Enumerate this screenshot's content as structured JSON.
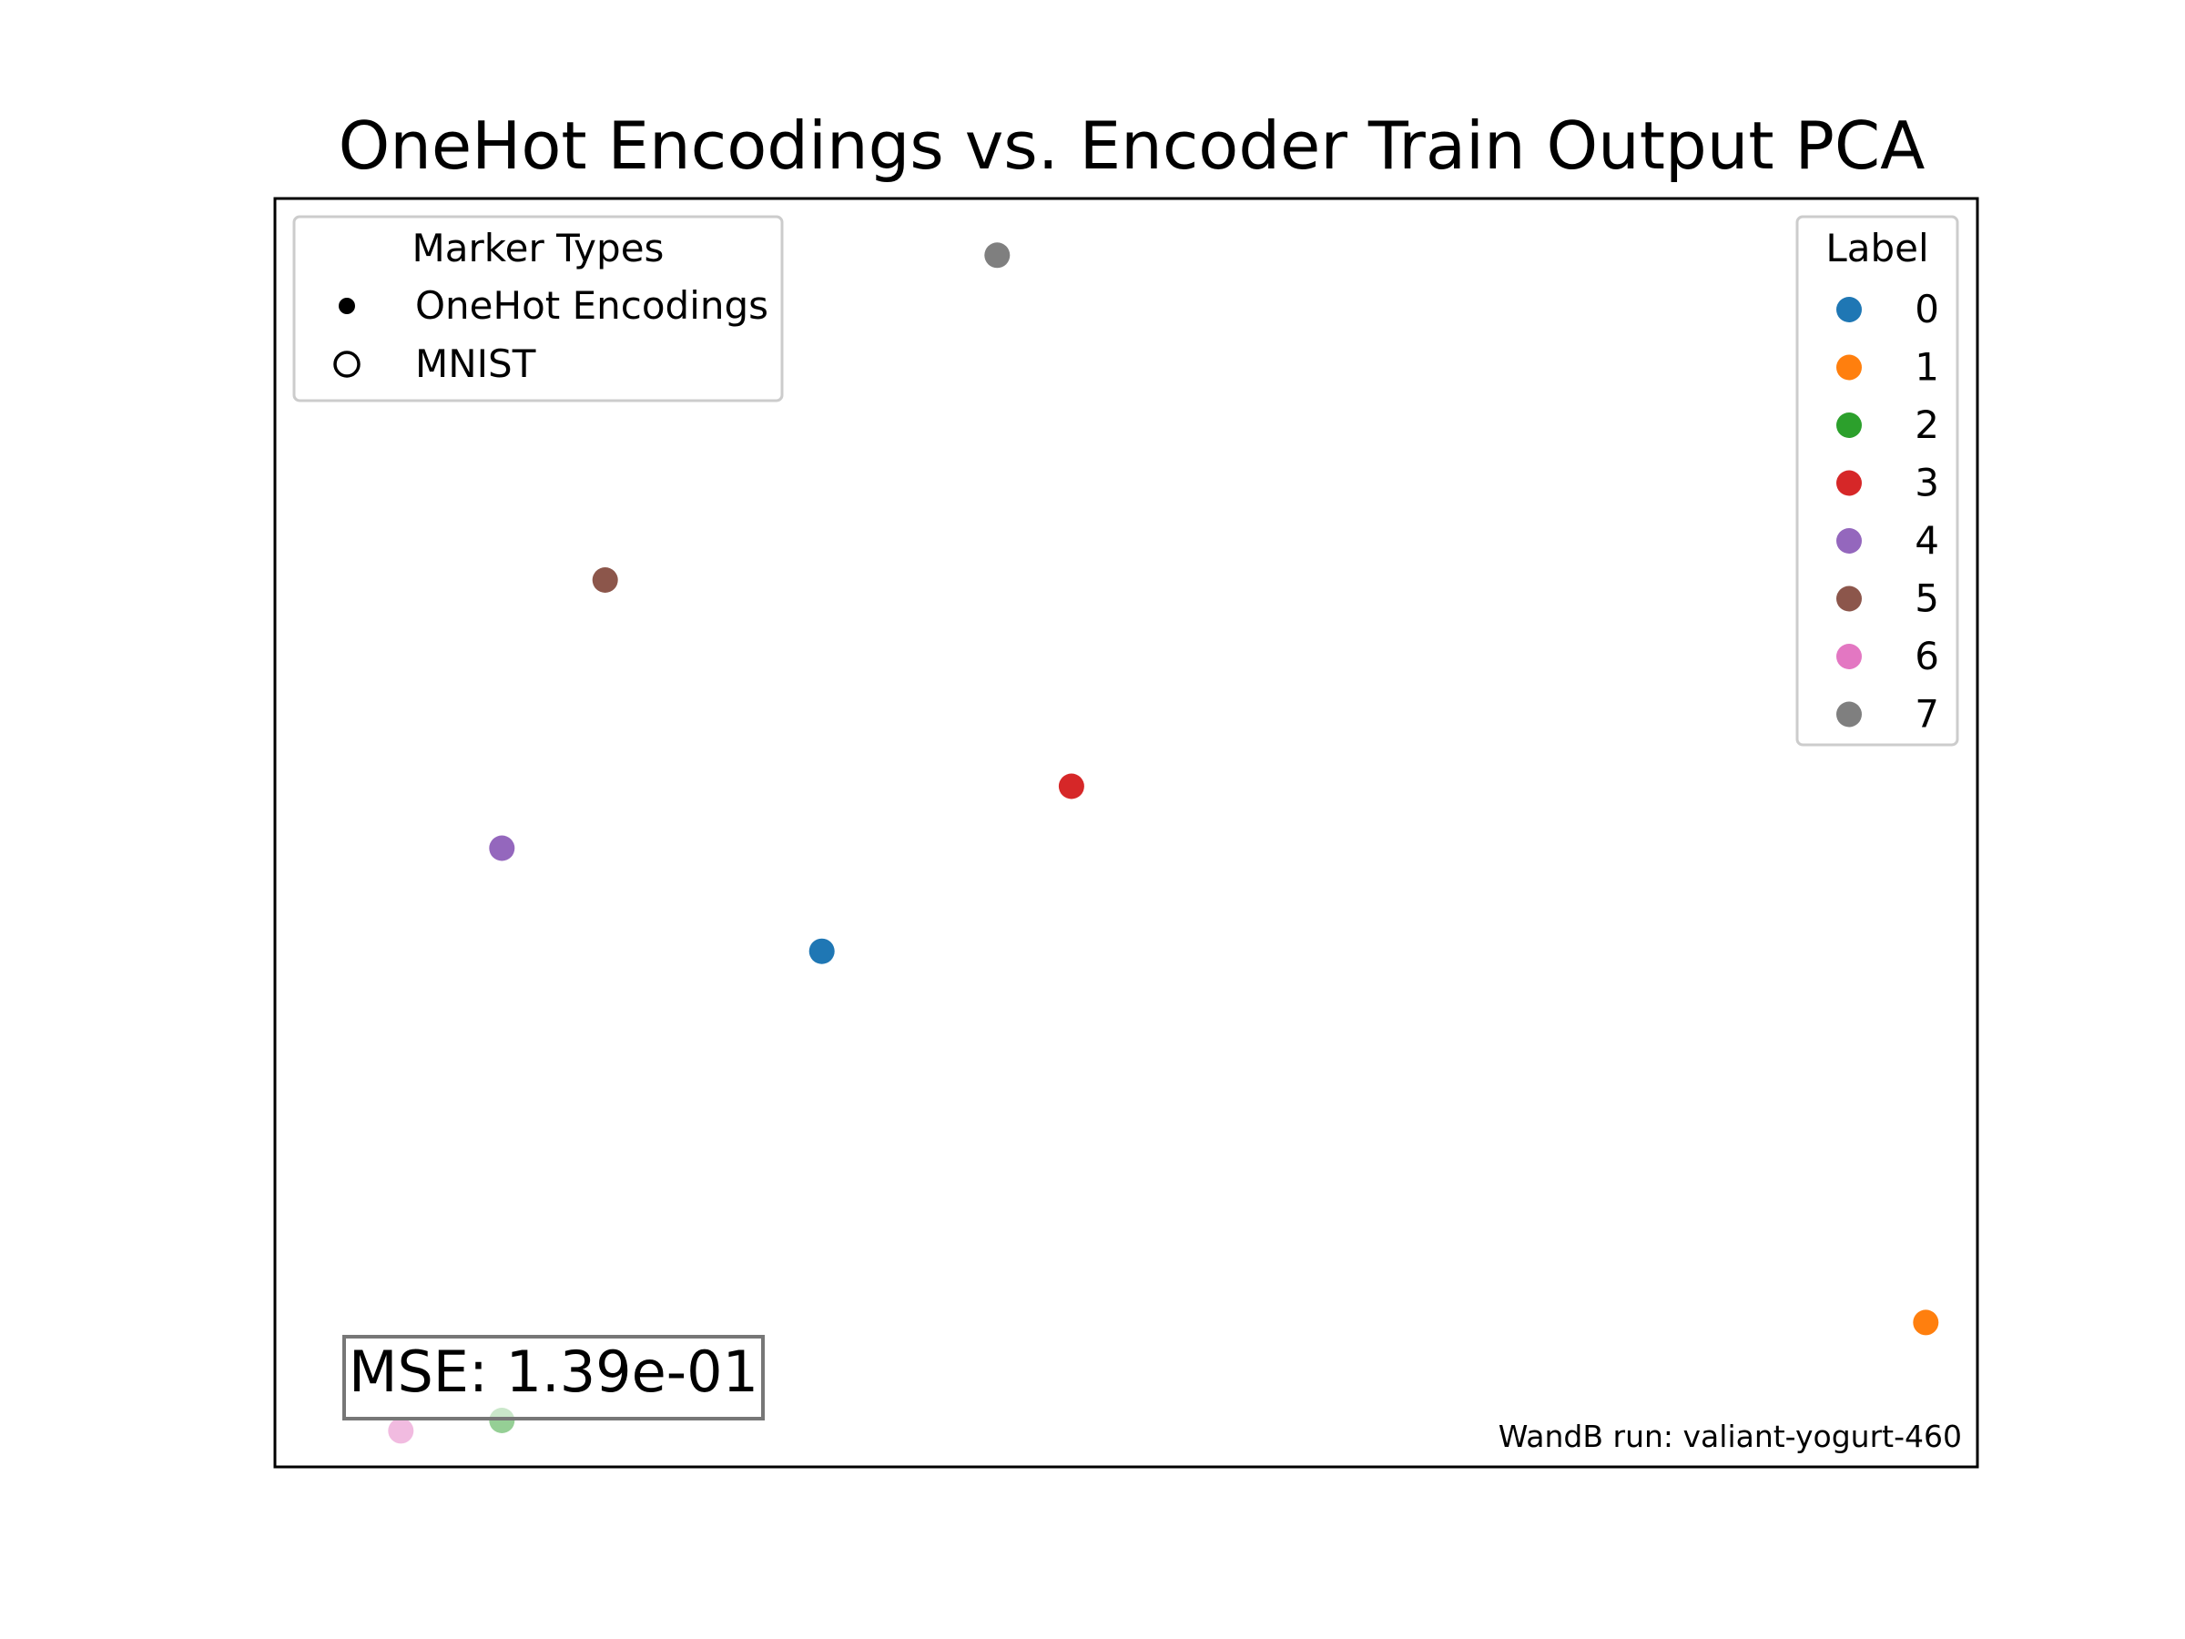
{
  "chart_data": {
    "type": "scatter",
    "title": "OneHot Encodings vs. Encoder Train Output PCA",
    "xlabel": "",
    "ylabel": "",
    "axes_visible": false,
    "grid": false,
    "xlim": [
      -2.0,
      14.5
    ],
    "ylim": [
      -4.8,
      7.5
    ],
    "series": [
      {
        "label": "0",
        "marker": "onehot",
        "color": "#1f77b4",
        "x": 3.3,
        "y": 0.2
      },
      {
        "label": "1",
        "marker": "onehot",
        "color": "#ff7f0e",
        "x": 14.0,
        "y": -3.4
      },
      {
        "label": "2",
        "marker": "onehot",
        "color": "#2ca02c",
        "x": 0.2,
        "y": -4.35,
        "alpha": 0.5
      },
      {
        "label": "3",
        "marker": "onehot",
        "color": "#d62728",
        "x": 5.72,
        "y": 1.8
      },
      {
        "label": "4",
        "marker": "onehot",
        "color": "#9467bd",
        "x": 0.2,
        "y": 1.2
      },
      {
        "label": "5",
        "marker": "onehot",
        "color": "#8c564b",
        "x": 1.2,
        "y": 3.8
      },
      {
        "label": "6",
        "marker": "onehot",
        "color": "#e377c2",
        "x": -0.78,
        "y": -4.45,
        "alpha": 0.5
      },
      {
        "label": "7",
        "marker": "onehot",
        "color": "#7f7f7f",
        "x": 5.0,
        "y": 6.95
      }
    ],
    "legend_markers": {
      "title": "Marker Types",
      "placement": "upper left",
      "entries": [
        {
          "label": "OneHot Encodings",
          "style": "filled"
        },
        {
          "label": "MNIST",
          "style": "hollow"
        }
      ]
    },
    "legend_labels": {
      "title": "Label",
      "placement": "upper right",
      "entries": [
        {
          "label": "0",
          "color": "#1f77b4"
        },
        {
          "label": "1",
          "color": "#ff7f0e"
        },
        {
          "label": "2",
          "color": "#2ca02c"
        },
        {
          "label": "3",
          "color": "#d62728"
        },
        {
          "label": "4",
          "color": "#9467bd"
        },
        {
          "label": "5",
          "color": "#8c564b"
        },
        {
          "label": "6",
          "color": "#e377c2"
        },
        {
          "label": "7",
          "color": "#7f7f7f"
        }
      ]
    },
    "annotations": {
      "mse": "MSE: 1.39e-01",
      "run": "WandB run: valiant-yogurt-460"
    }
  }
}
